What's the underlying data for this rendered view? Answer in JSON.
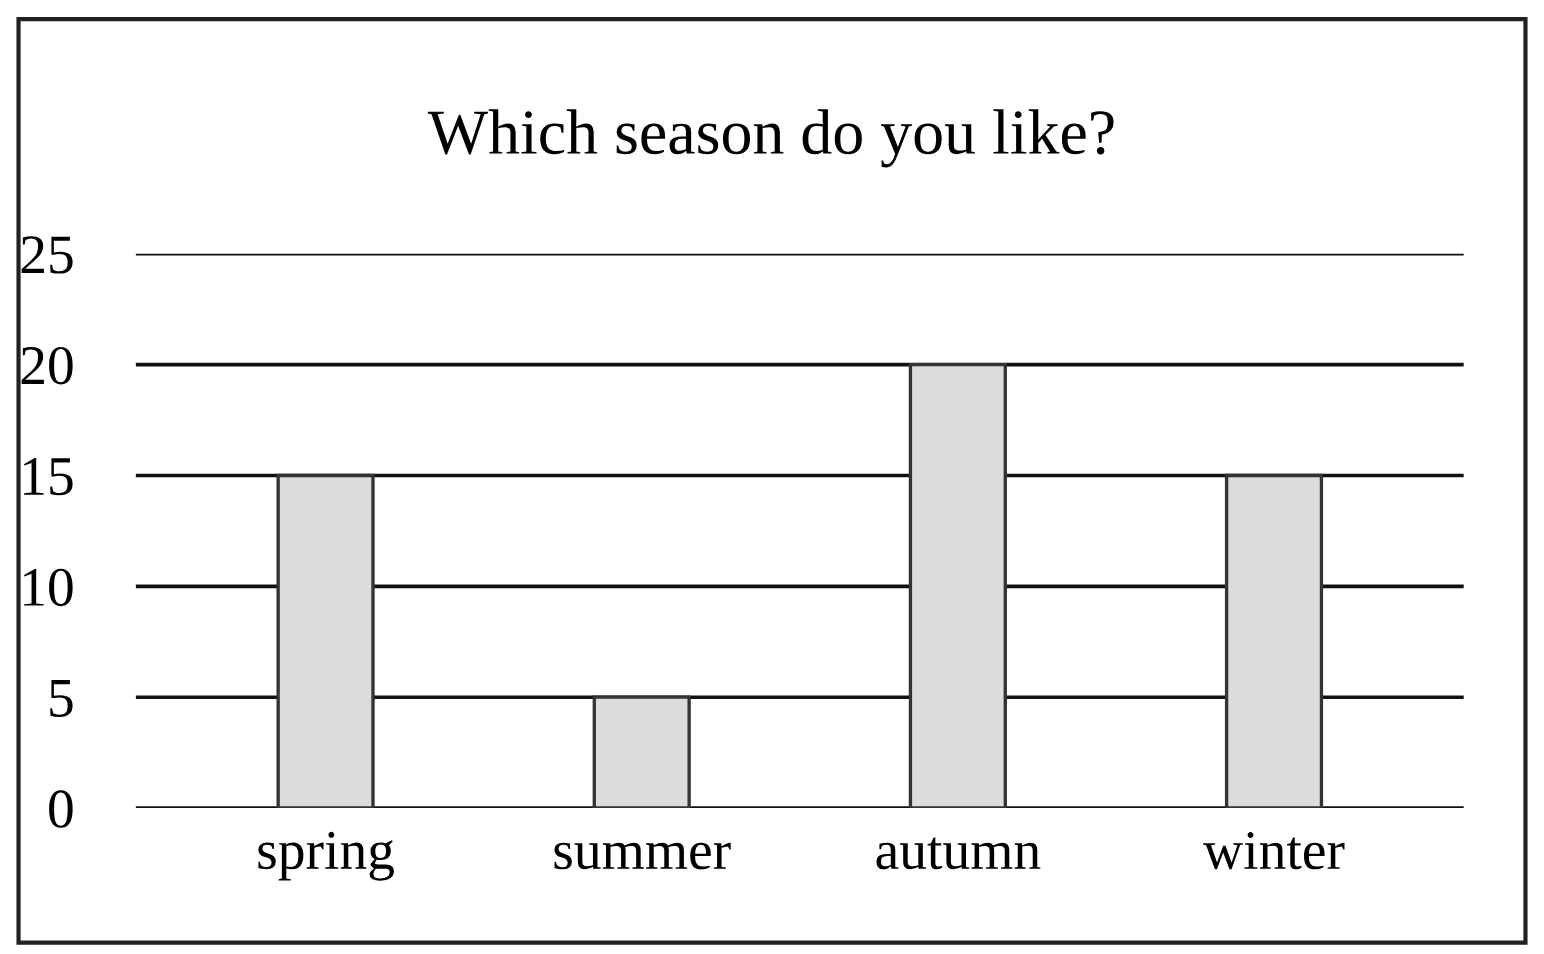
{
  "chart_data": {
    "type": "bar",
    "title": "Which season do you like?",
    "categories": [
      "spring",
      "summer",
      "autumn",
      "winter"
    ],
    "values": [
      15,
      5,
      20,
      15
    ],
    "color": "#dcdcdc",
    "ylim": [
      0,
      25
    ],
    "yticks": [
      0,
      5,
      10,
      15,
      20,
      25
    ],
    "grid": "y"
  }
}
